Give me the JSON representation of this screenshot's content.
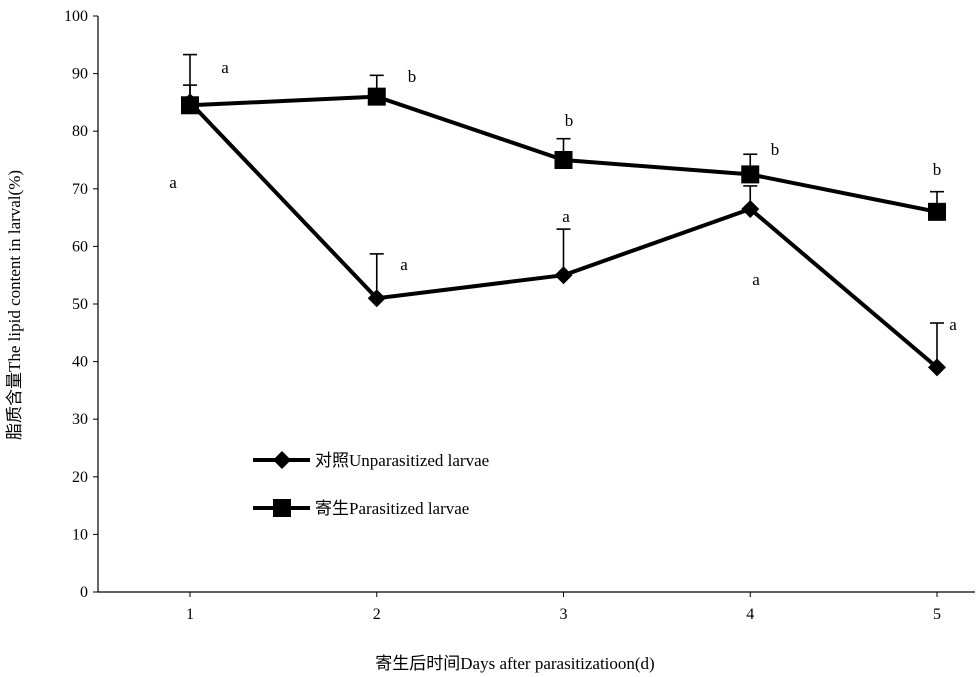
{
  "chart_data": {
    "type": "line",
    "title": "",
    "xlabel": "寄生后时间Days after parasitizatioon(d)",
    "ylabel": "脂质含量The lipid content in larval(%)",
    "xlim": [
      0.5,
      5.7
    ],
    "ylim": [
      0,
      100
    ],
    "x": [
      1,
      2,
      3,
      4,
      5
    ],
    "x_ticks": [
      "1",
      "2",
      "3",
      "4",
      "5"
    ],
    "y_ticks": [
      "0",
      "10",
      "20",
      "30",
      "40",
      "50",
      "60",
      "70",
      "80",
      "90",
      "100"
    ],
    "grid": false,
    "legend_position": "lower-left",
    "series": [
      {
        "name": "对照Unparasitized larvae",
        "marker": "diamond",
        "color": "#000000",
        "values": [
          85,
          51,
          55,
          66.5,
          39
        ],
        "error_upper": [
          88,
          58.7,
          63,
          70.5,
          46.7
        ],
        "letters": [
          "a",
          "a",
          "a",
          "a",
          "a"
        ]
      },
      {
        "name": "寄生Parasitized larvae",
        "marker": "square",
        "color": "#000000",
        "values": [
          84.5,
          86,
          75,
          72.5,
          66
        ],
        "error_upper": [
          93.3,
          89.7,
          78.7,
          76,
          69.5
        ],
        "letters": [
          "a",
          "b",
          "b",
          "b",
          "b"
        ]
      }
    ]
  }
}
